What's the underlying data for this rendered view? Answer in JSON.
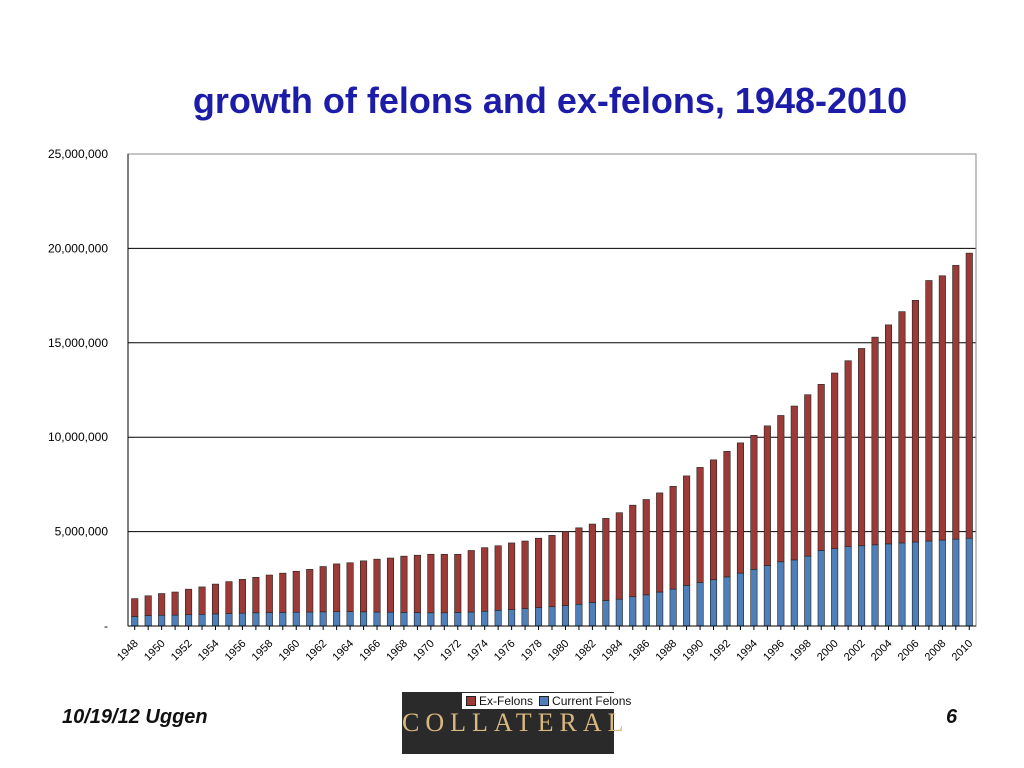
{
  "slide": {
    "title": "growth of felons and ex-felons, 1948-2010",
    "footer_left": "10/19/12 Uggen",
    "page_number": "6",
    "logo_text": "COLLATERAL"
  },
  "colors": {
    "title": "#1c1ca8",
    "ex_felons": "#9b3a36",
    "current_felons": "#4f7fb8"
  },
  "chart_data": {
    "type": "bar",
    "stacked": true,
    "title": "",
    "xlabel": "",
    "ylabel": "",
    "ylim": [
      0,
      25000000
    ],
    "yticks": [
      0,
      5000000,
      10000000,
      15000000,
      20000000,
      25000000
    ],
    "ytick_labels": [
      "-",
      "5,000,000",
      "10,000,000",
      "15,000,000",
      "20,000,000",
      "25,000,000"
    ],
    "grid": true,
    "legend": "bottom",
    "categories": [
      "1948",
      "1949",
      "1950",
      "1951",
      "1952",
      "1953",
      "1954",
      "1955",
      "1956",
      "1957",
      "1958",
      "1959",
      "1960",
      "1961",
      "1962",
      "1963",
      "1964",
      "1965",
      "1966",
      "1967",
      "1968",
      "1969",
      "1970",
      "1971",
      "1972",
      "1973",
      "1974",
      "1975",
      "1976",
      "1977",
      "1978",
      "1979",
      "1980",
      "1981",
      "1982",
      "1983",
      "1984",
      "1985",
      "1986",
      "1987",
      "1988",
      "1989",
      "1990",
      "1991",
      "1992",
      "1993",
      "1994",
      "1995",
      "1996",
      "1997",
      "1998",
      "1999",
      "2000",
      "2001",
      "2002",
      "2003",
      "2004",
      "2005",
      "2006",
      "2007",
      "2008",
      "2009",
      "2010"
    ],
    "x_tick_labels": [
      "1948",
      "1950",
      "1952",
      "1954",
      "1956",
      "1958",
      "1960",
      "1962",
      "1964",
      "1966",
      "1968",
      "1970",
      "1972",
      "1974",
      "1976",
      "1978",
      "1980",
      "1982",
      "1984",
      "1986",
      "1988",
      "1990",
      "1992",
      "1994",
      "1996",
      "1998",
      "2000",
      "2002",
      "2004",
      "2006",
      "2008",
      "2010"
    ],
    "series": [
      {
        "name": "Current Felons",
        "values": [
          500000,
          550000,
          570000,
          580000,
          600000,
          620000,
          640000,
          660000,
          680000,
          700000,
          710000,
          720000,
          730000,
          740000,
          750000,
          760000,
          760000,
          750000,
          740000,
          730000,
          720000,
          710000,
          700000,
          700000,
          720000,
          740000,
          780000,
          830000,
          870000,
          920000,
          970000,
          1020000,
          1080000,
          1150000,
          1250000,
          1350000,
          1420000,
          1550000,
          1650000,
          1800000,
          1950000,
          2150000,
          2300000,
          2450000,
          2600000,
          2800000,
          3000000,
          3200000,
          3400000,
          3500000,
          3700000,
          4000000,
          4100000,
          4200000,
          4250000,
          4300000,
          4350000,
          4400000,
          4450000,
          4500000,
          4550000,
          4600000,
          4650000
        ]
      },
      {
        "name": "Ex-Felons",
        "values": [
          950000,
          1050000,
          1150000,
          1220000,
          1350000,
          1450000,
          1580000,
          1690000,
          1790000,
          1880000,
          1990000,
          2080000,
          2170000,
          2260000,
          2400000,
          2530000,
          2590000,
          2700000,
          2800000,
          2870000,
          2980000,
          3040000,
          3100000,
          3100000,
          3080000,
          3260000,
          3370000,
          3420000,
          3530000,
          3580000,
          3680000,
          3780000,
          3920000,
          4050000,
          4150000,
          4350000,
          4580000,
          4850000,
          5050000,
          5250000,
          5450000,
          5800000,
          6100000,
          6350000,
          6650000,
          6900000,
          7100000,
          7400000,
          7750000,
          8150000,
          8550000,
          8800000,
          9300000,
          9850000,
          10450000,
          11000000,
          11600000,
          12250000,
          12800000,
          13800000,
          14000000,
          14500000,
          15100000
        ]
      }
    ]
  }
}
